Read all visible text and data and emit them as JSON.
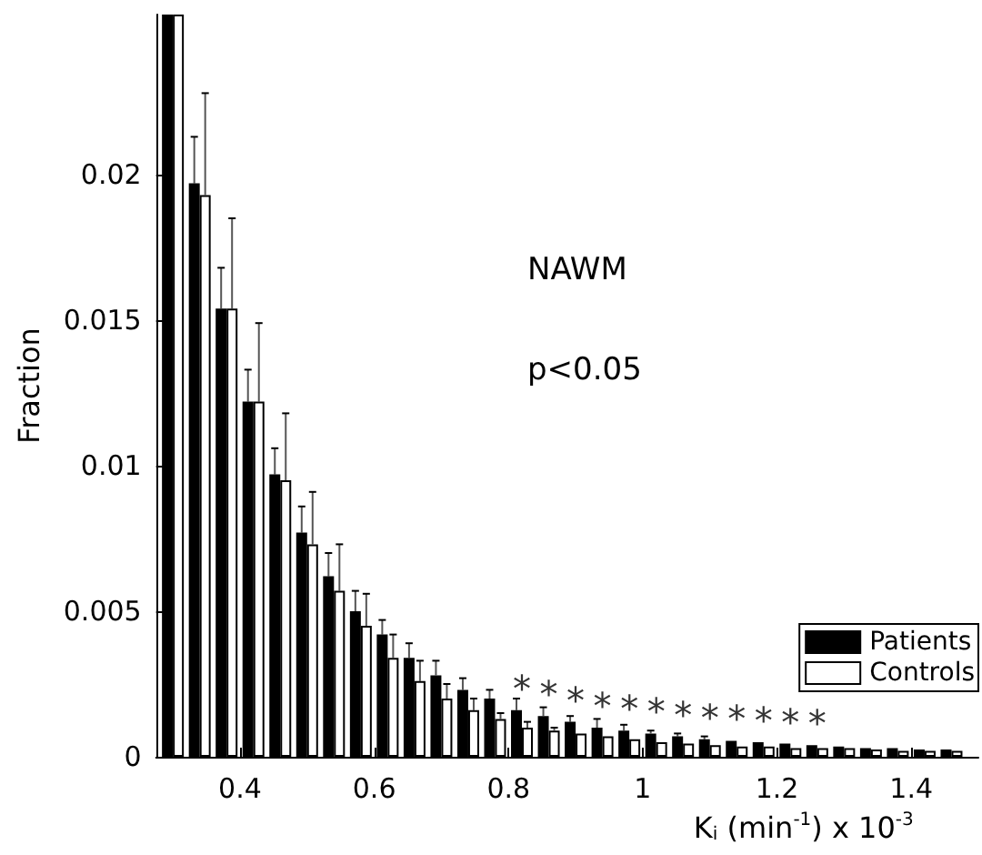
{
  "chart_data": {
    "type": "bar",
    "xlabel": "K$_{i}$ (min$^{-1}$) x 10$^{-3}$",
    "ylabel": "Fraction",
    "x": [
      0.3,
      0.34,
      0.38,
      0.42,
      0.46,
      0.5,
      0.54,
      0.58,
      0.62,
      0.66,
      0.7,
      0.74,
      0.78,
      0.82,
      0.86,
      0.9,
      0.94,
      0.98,
      1.02,
      1.06,
      1.1,
      1.14,
      1.18,
      1.22,
      1.26,
      1.3,
      1.34,
      1.38,
      1.42,
      1.46
    ],
    "series": [
      {
        "name": "Patients",
        "color": "#000000",
        "values": [
          0.0255,
          0.0197,
          0.0154,
          0.0122,
          0.0097,
          0.0077,
          0.0062,
          0.005,
          0.0042,
          0.0034,
          0.0028,
          0.0023,
          0.002,
          0.0016,
          0.0014,
          0.0012,
          0.001,
          0.0009,
          0.0008,
          0.0007,
          0.0006,
          0.00055,
          0.0005,
          0.00045,
          0.0004,
          0.00035,
          0.0003,
          0.0003,
          0.00025,
          0.00025
        ],
        "errors": [
          null,
          0.0016,
          0.0014,
          0.0011,
          0.0009,
          0.0009,
          0.0008,
          0.0007,
          0.0005,
          0.0005,
          0.0005,
          0.0004,
          0.0003,
          0.0004,
          0.0003,
          0.0002,
          0.0003,
          0.0002,
          0.0001,
          0.0001,
          0.0001,
          null,
          null,
          null,
          null,
          null,
          null,
          null,
          null,
          null
        ]
      },
      {
        "name": "Controls",
        "color": "#ffffff",
        "values": [
          0.0255,
          0.0193,
          0.0154,
          0.0122,
          0.0095,
          0.0073,
          0.0057,
          0.0045,
          0.0034,
          0.0026,
          0.002,
          0.0016,
          0.0013,
          0.001,
          0.0009,
          0.0008,
          0.0007,
          0.0006,
          0.0005,
          0.00045,
          0.0004,
          0.00035,
          0.00035,
          0.0003,
          0.0003,
          0.0003,
          0.00025,
          0.0002,
          0.0002,
          0.0002
        ],
        "errors": [
          null,
          0.0035,
          0.0031,
          0.0027,
          0.0023,
          0.0018,
          0.0016,
          0.0011,
          0.0008,
          0.0007,
          0.0005,
          0.0004,
          0.0002,
          0.0002,
          0.0001,
          null,
          null,
          null,
          null,
          null,
          null,
          null,
          null,
          null,
          null,
          null,
          null,
          null,
          null,
          null
        ]
      }
    ],
    "xlim": [
      0.275,
      1.5
    ],
    "xticks": [
      0.4,
      0.6,
      0.8,
      1,
      1.2,
      1.4
    ],
    "ylim": [
      0,
      0.0255
    ],
    "yticks": [
      0,
      0.005,
      0.01,
      0.015,
      0.02
    ],
    "annotations": [
      "NAWM",
      "p<0.05",
      {
        "text": "*",
        "x": 0.82,
        "y": 0.0016
      },
      {
        "text": "*",
        "x": 0.86,
        "y": 0.0014
      },
      {
        "text": "*",
        "x": 0.9,
        "y": 0.0012
      },
      {
        "text": "*",
        "x": 0.94,
        "y": 0.001
      },
      {
        "text": "*",
        "x": 0.98,
        "y": 0.0009
      },
      {
        "text": "*",
        "x": 1.02,
        "y": 0.0008
      },
      {
        "text": "*",
        "x": 1.06,
        "y": 0.0007
      },
      {
        "text": "*",
        "x": 1.1,
        "y": 0.0006
      },
      {
        "text": "*",
        "x": 1.14,
        "y": 0.00055
      },
      {
        "text": "*",
        "x": 1.18,
        "y": 0.0005
      },
      {
        "text": "*",
        "x": 1.22,
        "y": 0.00045
      },
      {
        "text": "*",
        "x": 1.26,
        "y": 0.0004
      }
    ],
    "legend": "bottom right",
    "grid": false
  }
}
